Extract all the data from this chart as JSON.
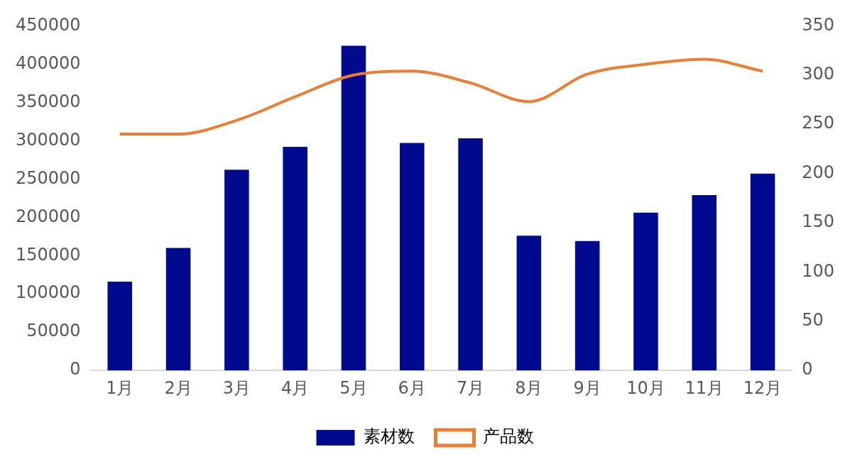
{
  "chart_data": {
    "type": "bar",
    "categories": [
      "1月",
      "2月",
      "3月",
      "4月",
      "5月",
      "6月",
      "7月",
      "8月",
      "9月",
      "10月",
      "11月",
      "12月"
    ],
    "series": [
      {
        "name": "素材数",
        "color": "#000a8f",
        "values": [
          116000,
          160000,
          262000,
          292000,
          424000,
          297000,
          303000,
          176000,
          169000,
          206000,
          229000,
          257000
        ]
      },
      {
        "name": "产品数",
        "type": "line",
        "axis": "y2",
        "color": "#ed7d31",
        "values": [
          240,
          240,
          254,
          278,
          300,
          304,
          292,
          273,
          301,
          311,
          316,
          304
        ]
      }
    ],
    "ylim": [
      0,
      450000
    ],
    "yticks": [
      0,
      50000,
      100000,
      150000,
      200000,
      250000,
      300000,
      350000,
      400000,
      450000
    ],
    "y2lim": [
      0,
      350
    ],
    "y2ticks": [
      0,
      50,
      100,
      150,
      200,
      250,
      300,
      350
    ],
    "grid": false,
    "legend": "bottom",
    "marker": "none",
    "line_style": "solid"
  }
}
